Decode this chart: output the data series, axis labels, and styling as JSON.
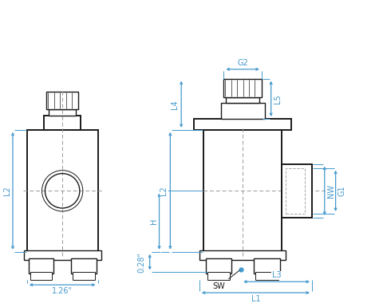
{
  "bg_color": "#ffffff",
  "line_color": "#1a1a1a",
  "dim_color": "#4499cc",
  "dash_color": "#999999",
  "labels": {
    "L1": "L1",
    "L2": "L2",
    "L3": "L3",
    "L4": "L4",
    "L5": "L5",
    "G1": "G1",
    "G2": "G2",
    "H": "H",
    "NW": "NW",
    "SW": "SW",
    "width": "1.26\"",
    "offset": "0.28\""
  },
  "figsize": [
    4.8,
    3.8
  ],
  "dpi": 100
}
